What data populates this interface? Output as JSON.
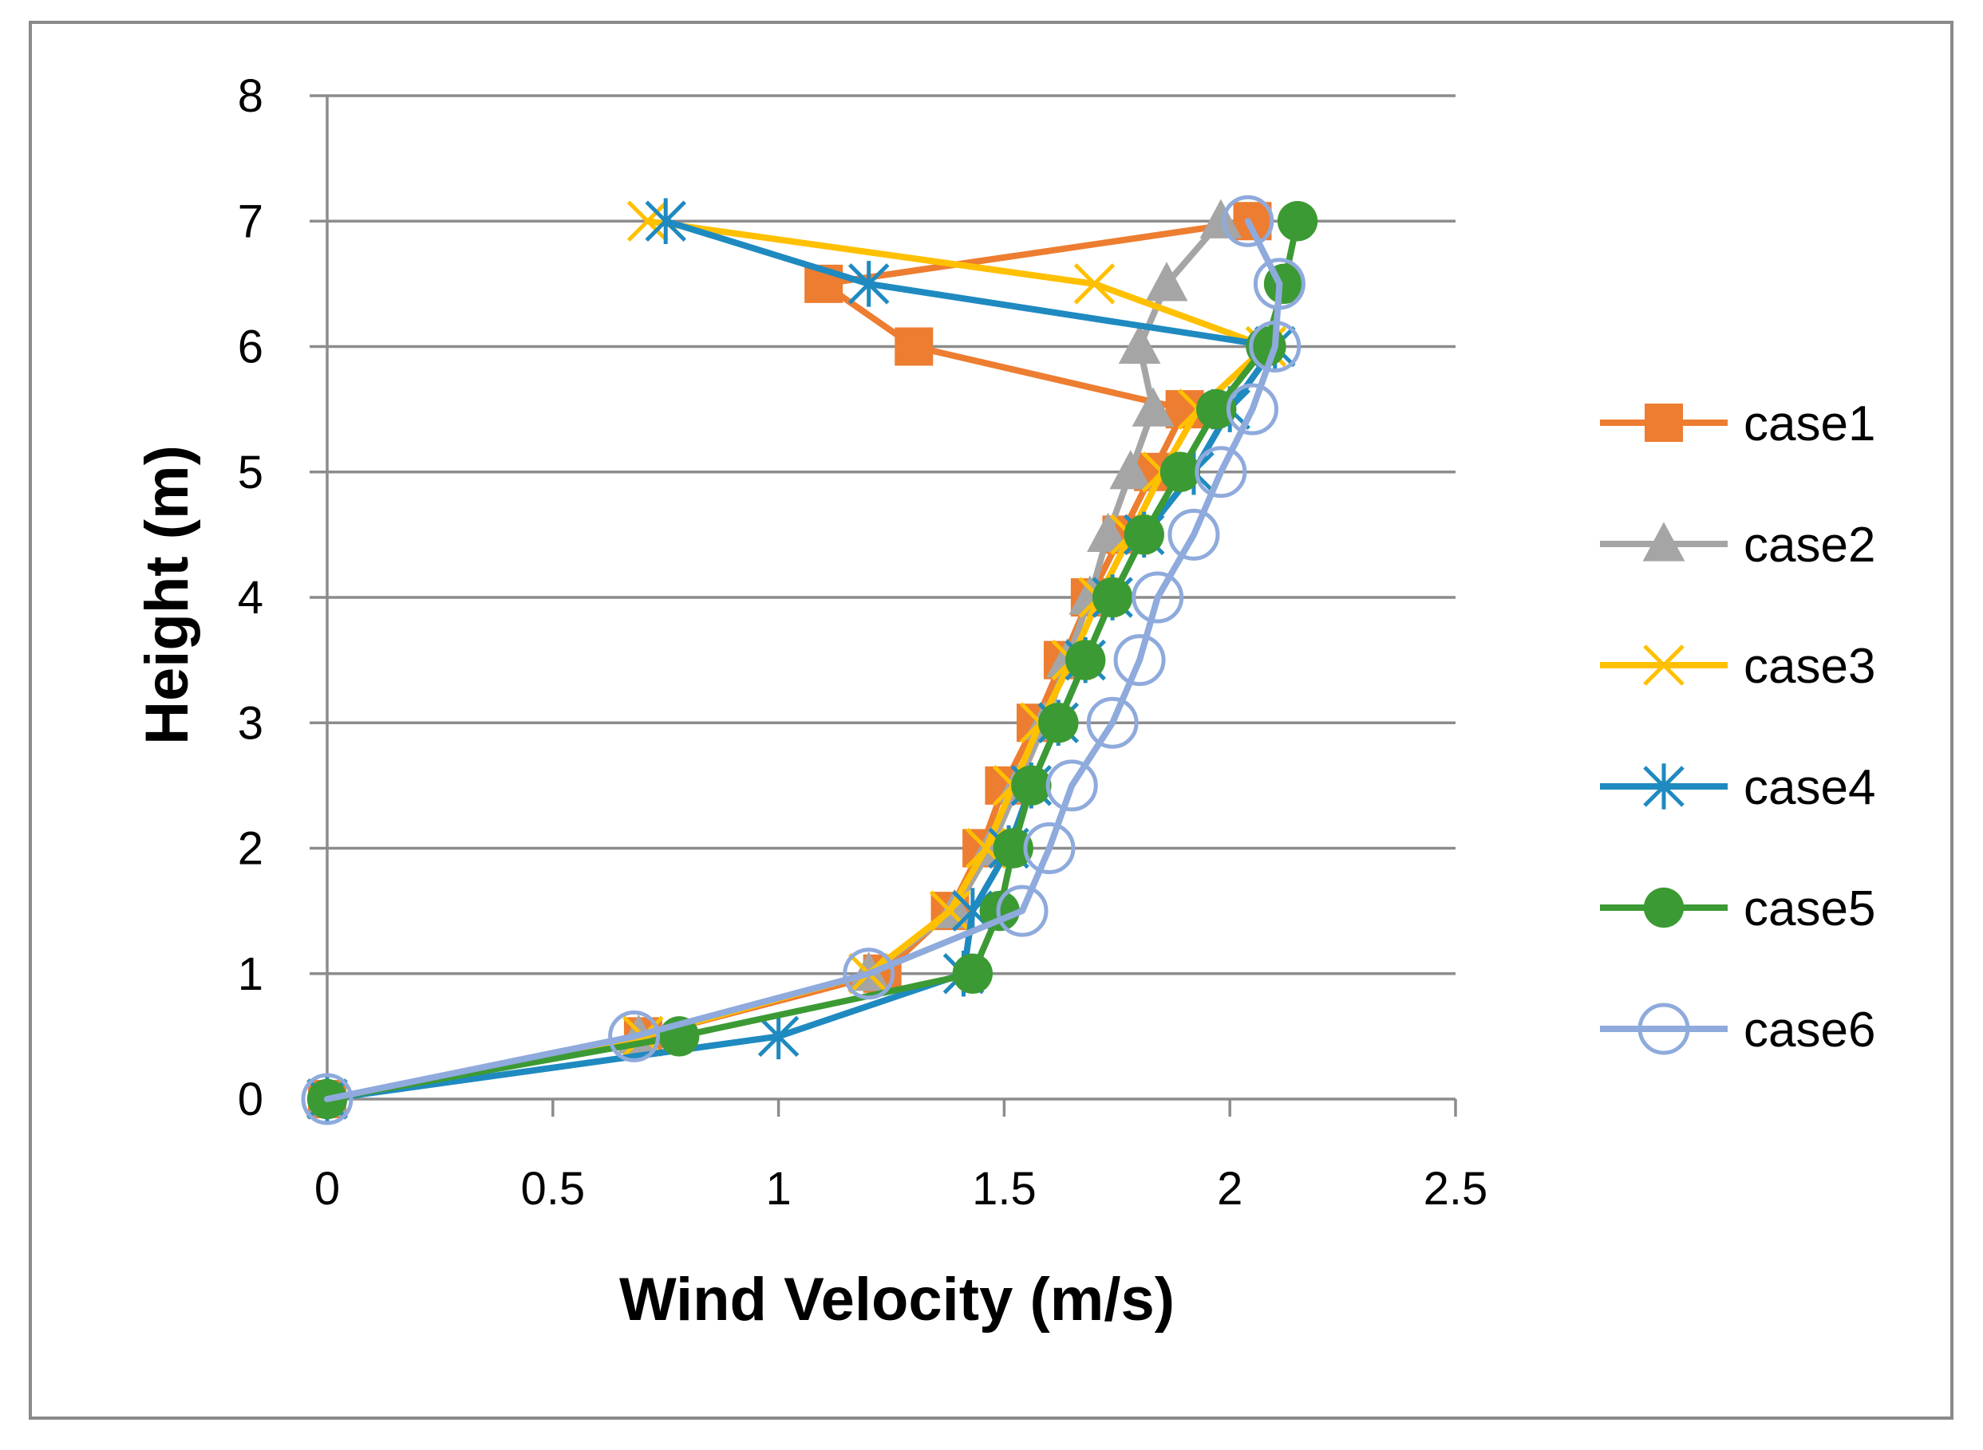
{
  "chart_data": {
    "type": "line",
    "title": "",
    "xlabel": "Wind Velocity (m/s)",
    "ylabel": "Height (m)",
    "xlim": [
      0,
      2.5
    ],
    "ylim": [
      0,
      8
    ],
    "xticks": [
      0,
      0.5,
      1,
      1.5,
      2,
      2.5
    ],
    "yticks": [
      0,
      1,
      2,
      3,
      4,
      5,
      6,
      7,
      8
    ],
    "xtick_labels": [
      "0",
      "0.5",
      "1",
      "1.5",
      "2",
      "2.5"
    ],
    "ytick_labels": [
      "0",
      "1",
      "2",
      "3",
      "4",
      "5",
      "6",
      "7",
      "8"
    ],
    "grid": "horizontal",
    "legend_position": "right",
    "series": [
      {
        "name": "case1",
        "color": "#ED7D31",
        "marker": "square",
        "points": [
          [
            0,
            0
          ],
          [
            0.7,
            0.5
          ],
          [
            1.23,
            1
          ],
          [
            1.38,
            1.5
          ],
          [
            1.45,
            2
          ],
          [
            1.5,
            2.5
          ],
          [
            1.57,
            3
          ],
          [
            1.63,
            3.5
          ],
          [
            1.69,
            4
          ],
          [
            1.76,
            4.5
          ],
          [
            1.83,
            5
          ],
          [
            1.9,
            5.5
          ],
          [
            1.3,
            6
          ],
          [
            1.1,
            6.5
          ],
          [
            2.05,
            7
          ]
        ]
      },
      {
        "name": "case2",
        "color": "#A5A5A5",
        "marker": "triangle",
        "points": [
          [
            0,
            0
          ],
          [
            0.69,
            0.5
          ],
          [
            1.2,
            1
          ],
          [
            1.39,
            1.5
          ],
          [
            1.47,
            2
          ],
          [
            1.53,
            2.5
          ],
          [
            1.59,
            3
          ],
          [
            1.64,
            3.5
          ],
          [
            1.69,
            4
          ],
          [
            1.73,
            4.5
          ],
          [
            1.78,
            5
          ],
          [
            1.83,
            5.5
          ],
          [
            1.8,
            6
          ],
          [
            1.86,
            6.5
          ],
          [
            1.98,
            7
          ]
        ]
      },
      {
        "name": "case3",
        "color": "#FFC000",
        "marker": "x",
        "points": [
          [
            0,
            0
          ],
          [
            0.7,
            0.5
          ],
          [
            1.2,
            1
          ],
          [
            1.38,
            1.5
          ],
          [
            1.46,
            2
          ],
          [
            1.52,
            2.5
          ],
          [
            1.58,
            3
          ],
          [
            1.65,
            3.5
          ],
          [
            1.71,
            4
          ],
          [
            1.78,
            4.5
          ],
          [
            1.85,
            5
          ],
          [
            1.93,
            5.5
          ],
          [
            2.08,
            6
          ],
          [
            1.7,
            6.5
          ],
          [
            0.71,
            7
          ]
        ]
      },
      {
        "name": "case4",
        "color": "#1F8AC0",
        "marker": "asterisk",
        "points": [
          [
            0,
            0
          ],
          [
            1.0,
            0.5
          ],
          [
            1.41,
            1
          ],
          [
            1.43,
            1.5
          ],
          [
            1.51,
            2
          ],
          [
            1.56,
            2.5
          ],
          [
            1.62,
            3
          ],
          [
            1.68,
            3.5
          ],
          [
            1.74,
            4
          ],
          [
            1.81,
            4.5
          ],
          [
            1.92,
            5
          ],
          [
            2.0,
            5.5
          ],
          [
            2.1,
            6
          ],
          [
            1.2,
            6.5
          ],
          [
            0.75,
            7
          ]
        ]
      },
      {
        "name": "case5",
        "color": "#3C9A34",
        "marker": "circle",
        "points": [
          [
            0,
            0
          ],
          [
            0.78,
            0.5
          ],
          [
            1.43,
            1
          ],
          [
            1.49,
            1.5
          ],
          [
            1.52,
            2
          ],
          [
            1.56,
            2.5
          ],
          [
            1.62,
            3
          ],
          [
            1.68,
            3.5
          ],
          [
            1.74,
            4
          ],
          [
            1.81,
            4.5
          ],
          [
            1.89,
            5
          ],
          [
            1.97,
            5.5
          ],
          [
            2.08,
            6
          ],
          [
            2.12,
            6.5
          ],
          [
            2.15,
            7
          ]
        ]
      },
      {
        "name": "case6",
        "color": "#8FAADC",
        "marker": "open-circle",
        "points": [
          [
            0,
            0
          ],
          [
            0.68,
            0.5
          ],
          [
            1.2,
            1
          ],
          [
            1.54,
            1.5
          ],
          [
            1.6,
            2
          ],
          [
            1.65,
            2.5
          ],
          [
            1.74,
            3
          ],
          [
            1.8,
            3.5
          ],
          [
            1.84,
            4
          ],
          [
            1.92,
            4.5
          ],
          [
            1.98,
            5
          ],
          [
            2.05,
            5.5
          ],
          [
            2.1,
            6
          ],
          [
            2.11,
            6.5
          ],
          [
            2.04,
            7
          ]
        ]
      }
    ]
  }
}
